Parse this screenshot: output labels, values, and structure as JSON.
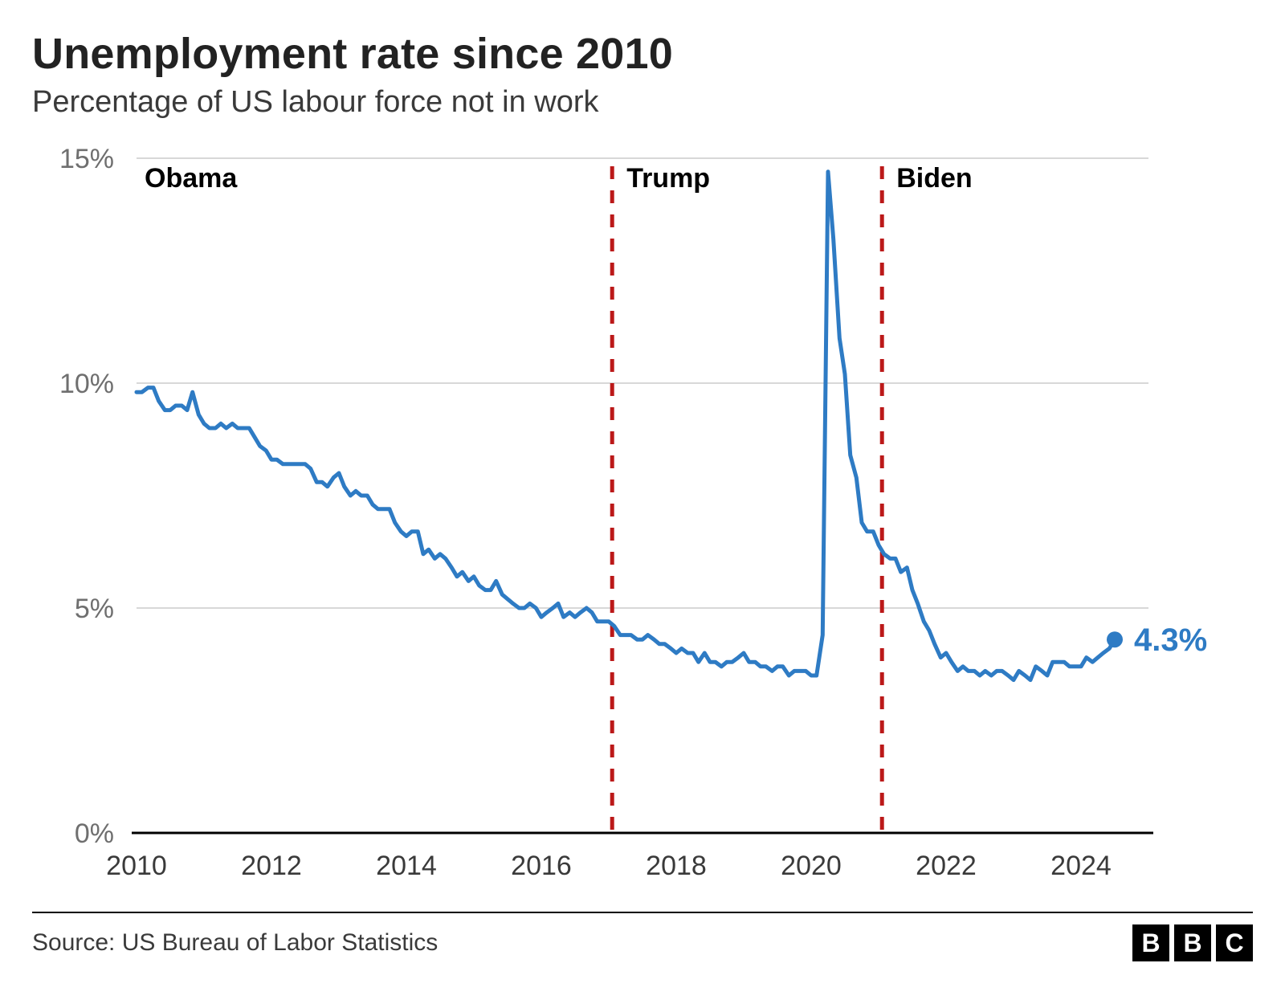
{
  "title": "Unemployment rate since 2010",
  "subtitle": "Percentage of US labour force not in work",
  "source_line": "Source: US Bureau of Labor Statistics",
  "logo_letters": [
    "B",
    "B",
    "C"
  ],
  "chart": {
    "type": "line",
    "background_color": "#ffffff",
    "line_color": "#2e7bc4",
    "line_width": 5,
    "end_marker_radius": 10,
    "grid_color": "#d8d8d8",
    "axis_color": "#000000",
    "tick_label_color": "#6f6f6f",
    "xtick_label_color": "#3a3a3a",
    "divider_color": "#bb1919",
    "divider_dash": "16 14",
    "divider_width": 5,
    "xlim": [
      2010,
      2025
    ],
    "ylim": [
      0,
      15
    ],
    "ytick_step": 5,
    "y_ticks": [
      0,
      5,
      10,
      15
    ],
    "y_tick_suffix": "%",
    "x_ticks": [
      2010,
      2012,
      2014,
      2016,
      2018,
      2020,
      2024
    ],
    "x_tick_2022_offset": true,
    "administrations": [
      {
        "label": "Obama",
        "start": 2010,
        "divider_at": null
      },
      {
        "label": "Trump",
        "start": 2017.05,
        "divider_at": 2017.05
      },
      {
        "label": "Biden",
        "start": 2021.05,
        "divider_at": 2021.05
      }
    ],
    "end_label": "4.3%",
    "series": [
      {
        "x": 2010.0,
        "y": 9.8
      },
      {
        "x": 2010.08,
        "y": 9.8
      },
      {
        "x": 2010.17,
        "y": 9.9
      },
      {
        "x": 2010.25,
        "y": 9.9
      },
      {
        "x": 2010.33,
        "y": 9.6
      },
      {
        "x": 2010.42,
        "y": 9.4
      },
      {
        "x": 2010.5,
        "y": 9.4
      },
      {
        "x": 2010.58,
        "y": 9.5
      },
      {
        "x": 2010.67,
        "y": 9.5
      },
      {
        "x": 2010.75,
        "y": 9.4
      },
      {
        "x": 2010.83,
        "y": 9.8
      },
      {
        "x": 2010.92,
        "y": 9.3
      },
      {
        "x": 2011.0,
        "y": 9.1
      },
      {
        "x": 2011.08,
        "y": 9.0
      },
      {
        "x": 2011.17,
        "y": 9.0
      },
      {
        "x": 2011.25,
        "y": 9.1
      },
      {
        "x": 2011.33,
        "y": 9.0
      },
      {
        "x": 2011.42,
        "y": 9.1
      },
      {
        "x": 2011.5,
        "y": 9.0
      },
      {
        "x": 2011.58,
        "y": 9.0
      },
      {
        "x": 2011.67,
        "y": 9.0
      },
      {
        "x": 2011.75,
        "y": 8.8
      },
      {
        "x": 2011.83,
        "y": 8.6
      },
      {
        "x": 2011.92,
        "y": 8.5
      },
      {
        "x": 2012.0,
        "y": 8.3
      },
      {
        "x": 2012.08,
        "y": 8.3
      },
      {
        "x": 2012.17,
        "y": 8.2
      },
      {
        "x": 2012.25,
        "y": 8.2
      },
      {
        "x": 2012.33,
        "y": 8.2
      },
      {
        "x": 2012.42,
        "y": 8.2
      },
      {
        "x": 2012.5,
        "y": 8.2
      },
      {
        "x": 2012.58,
        "y": 8.1
      },
      {
        "x": 2012.67,
        "y": 7.8
      },
      {
        "x": 2012.75,
        "y": 7.8
      },
      {
        "x": 2012.83,
        "y": 7.7
      },
      {
        "x": 2012.92,
        "y": 7.9
      },
      {
        "x": 2013.0,
        "y": 8.0
      },
      {
        "x": 2013.08,
        "y": 7.7
      },
      {
        "x": 2013.17,
        "y": 7.5
      },
      {
        "x": 2013.25,
        "y": 7.6
      },
      {
        "x": 2013.33,
        "y": 7.5
      },
      {
        "x": 2013.42,
        "y": 7.5
      },
      {
        "x": 2013.5,
        "y": 7.3
      },
      {
        "x": 2013.58,
        "y": 7.2
      },
      {
        "x": 2013.67,
        "y": 7.2
      },
      {
        "x": 2013.75,
        "y": 7.2
      },
      {
        "x": 2013.83,
        "y": 6.9
      },
      {
        "x": 2013.92,
        "y": 6.7
      },
      {
        "x": 2014.0,
        "y": 6.6
      },
      {
        "x": 2014.08,
        "y": 6.7
      },
      {
        "x": 2014.17,
        "y": 6.7
      },
      {
        "x": 2014.25,
        "y": 6.2
      },
      {
        "x": 2014.33,
        "y": 6.3
      },
      {
        "x": 2014.42,
        "y": 6.1
      },
      {
        "x": 2014.5,
        "y": 6.2
      },
      {
        "x": 2014.58,
        "y": 6.1
      },
      {
        "x": 2014.67,
        "y": 5.9
      },
      {
        "x": 2014.75,
        "y": 5.7
      },
      {
        "x": 2014.83,
        "y": 5.8
      },
      {
        "x": 2014.92,
        "y": 5.6
      },
      {
        "x": 2015.0,
        "y": 5.7
      },
      {
        "x": 2015.08,
        "y": 5.5
      },
      {
        "x": 2015.17,
        "y": 5.4
      },
      {
        "x": 2015.25,
        "y": 5.4
      },
      {
        "x": 2015.33,
        "y": 5.6
      },
      {
        "x": 2015.42,
        "y": 5.3
      },
      {
        "x": 2015.5,
        "y": 5.2
      },
      {
        "x": 2015.58,
        "y": 5.1
      },
      {
        "x": 2015.67,
        "y": 5.0
      },
      {
        "x": 2015.75,
        "y": 5.0
      },
      {
        "x": 2015.83,
        "y": 5.1
      },
      {
        "x": 2015.92,
        "y": 5.0
      },
      {
        "x": 2016.0,
        "y": 4.8
      },
      {
        "x": 2016.08,
        "y": 4.9
      },
      {
        "x": 2016.17,
        "y": 5.0
      },
      {
        "x": 2016.25,
        "y": 5.1
      },
      {
        "x": 2016.33,
        "y": 4.8
      },
      {
        "x": 2016.42,
        "y": 4.9
      },
      {
        "x": 2016.5,
        "y": 4.8
      },
      {
        "x": 2016.58,
        "y": 4.9
      },
      {
        "x": 2016.67,
        "y": 5.0
      },
      {
        "x": 2016.75,
        "y": 4.9
      },
      {
        "x": 2016.83,
        "y": 4.7
      },
      {
        "x": 2016.92,
        "y": 4.7
      },
      {
        "x": 2017.0,
        "y": 4.7
      },
      {
        "x": 2017.08,
        "y": 4.6
      },
      {
        "x": 2017.17,
        "y": 4.4
      },
      {
        "x": 2017.25,
        "y": 4.4
      },
      {
        "x": 2017.33,
        "y": 4.4
      },
      {
        "x": 2017.42,
        "y": 4.3
      },
      {
        "x": 2017.5,
        "y": 4.3
      },
      {
        "x": 2017.58,
        "y": 4.4
      },
      {
        "x": 2017.67,
        "y": 4.3
      },
      {
        "x": 2017.75,
        "y": 4.2
      },
      {
        "x": 2017.83,
        "y": 4.2
      },
      {
        "x": 2017.92,
        "y": 4.1
      },
      {
        "x": 2018.0,
        "y": 4.0
      },
      {
        "x": 2018.08,
        "y": 4.1
      },
      {
        "x": 2018.17,
        "y": 4.0
      },
      {
        "x": 2018.25,
        "y": 4.0
      },
      {
        "x": 2018.33,
        "y": 3.8
      },
      {
        "x": 2018.42,
        "y": 4.0
      },
      {
        "x": 2018.5,
        "y": 3.8
      },
      {
        "x": 2018.58,
        "y": 3.8
      },
      {
        "x": 2018.67,
        "y": 3.7
      },
      {
        "x": 2018.75,
        "y": 3.8
      },
      {
        "x": 2018.83,
        "y": 3.8
      },
      {
        "x": 2018.92,
        "y": 3.9
      },
      {
        "x": 2019.0,
        "y": 4.0
      },
      {
        "x": 2019.08,
        "y": 3.8
      },
      {
        "x": 2019.17,
        "y": 3.8
      },
      {
        "x": 2019.25,
        "y": 3.7
      },
      {
        "x": 2019.33,
        "y": 3.7
      },
      {
        "x": 2019.42,
        "y": 3.6
      },
      {
        "x": 2019.5,
        "y": 3.7
      },
      {
        "x": 2019.58,
        "y": 3.7
      },
      {
        "x": 2019.67,
        "y": 3.5
      },
      {
        "x": 2019.75,
        "y": 3.6
      },
      {
        "x": 2019.83,
        "y": 3.6
      },
      {
        "x": 2019.92,
        "y": 3.6
      },
      {
        "x": 2020.0,
        "y": 3.5
      },
      {
        "x": 2020.08,
        "y": 3.5
      },
      {
        "x": 2020.17,
        "y": 4.4
      },
      {
        "x": 2020.25,
        "y": 14.7
      },
      {
        "x": 2020.33,
        "y": 13.2
      },
      {
        "x": 2020.42,
        "y": 11.0
      },
      {
        "x": 2020.5,
        "y": 10.2
      },
      {
        "x": 2020.58,
        "y": 8.4
      },
      {
        "x": 2020.67,
        "y": 7.9
      },
      {
        "x": 2020.75,
        "y": 6.9
      },
      {
        "x": 2020.83,
        "y": 6.7
      },
      {
        "x": 2020.92,
        "y": 6.7
      },
      {
        "x": 2021.0,
        "y": 6.4
      },
      {
        "x": 2021.08,
        "y": 6.2
      },
      {
        "x": 2021.17,
        "y": 6.1
      },
      {
        "x": 2021.25,
        "y": 6.1
      },
      {
        "x": 2021.33,
        "y": 5.8
      },
      {
        "x": 2021.42,
        "y": 5.9
      },
      {
        "x": 2021.5,
        "y": 5.4
      },
      {
        "x": 2021.58,
        "y": 5.1
      },
      {
        "x": 2021.67,
        "y": 4.7
      },
      {
        "x": 2021.75,
        "y": 4.5
      },
      {
        "x": 2021.83,
        "y": 4.2
      },
      {
        "x": 2021.92,
        "y": 3.9
      },
      {
        "x": 2022.0,
        "y": 4.0
      },
      {
        "x": 2022.08,
        "y": 3.8
      },
      {
        "x": 2022.17,
        "y": 3.6
      },
      {
        "x": 2022.25,
        "y": 3.7
      },
      {
        "x": 2022.33,
        "y": 3.6
      },
      {
        "x": 2022.42,
        "y": 3.6
      },
      {
        "x": 2022.5,
        "y": 3.5
      },
      {
        "x": 2022.58,
        "y": 3.6
      },
      {
        "x": 2022.67,
        "y": 3.5
      },
      {
        "x": 2022.75,
        "y": 3.6
      },
      {
        "x": 2022.83,
        "y": 3.6
      },
      {
        "x": 2022.92,
        "y": 3.5
      },
      {
        "x": 2023.0,
        "y": 3.4
      },
      {
        "x": 2023.08,
        "y": 3.6
      },
      {
        "x": 2023.17,
        "y": 3.5
      },
      {
        "x": 2023.25,
        "y": 3.4
      },
      {
        "x": 2023.33,
        "y": 3.7
      },
      {
        "x": 2023.42,
        "y": 3.6
      },
      {
        "x": 2023.5,
        "y": 3.5
      },
      {
        "x": 2023.58,
        "y": 3.8
      },
      {
        "x": 2023.67,
        "y": 3.8
      },
      {
        "x": 2023.75,
        "y": 3.8
      },
      {
        "x": 2023.83,
        "y": 3.7
      },
      {
        "x": 2023.92,
        "y": 3.7
      },
      {
        "x": 2024.0,
        "y": 3.7
      },
      {
        "x": 2024.08,
        "y": 3.9
      },
      {
        "x": 2024.17,
        "y": 3.8
      },
      {
        "x": 2024.25,
        "y": 3.9
      },
      {
        "x": 2024.33,
        "y": 4.0
      },
      {
        "x": 2024.42,
        "y": 4.1
      },
      {
        "x": 2024.5,
        "y": 4.3
      }
    ]
  }
}
